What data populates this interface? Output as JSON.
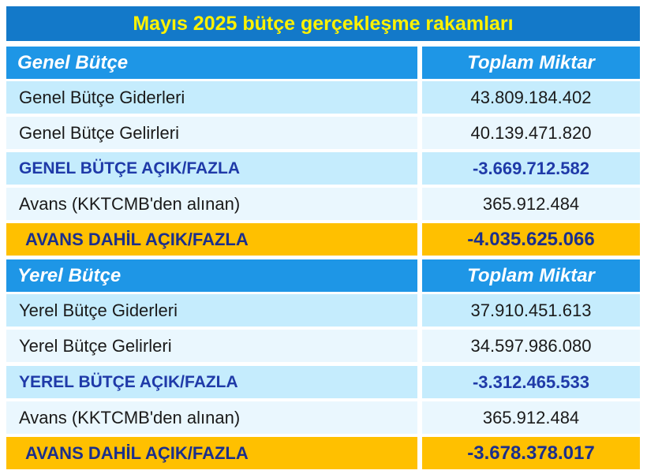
{
  "title": "Mayıs 2025 bütçe gerçekleşme rakamları",
  "general": {
    "header": {
      "label": "Genel Bütçe",
      "amount_label": "Toplam Miktar"
    },
    "rows": [
      {
        "label": "Genel Bütçe Giderleri",
        "value": "43.809.184.402"
      },
      {
        "label": "Genel Bütçe Gelirleri",
        "value": "40.139.471.820"
      },
      {
        "label": "GENEL BÜTÇE AÇIK/FAZLA",
        "value": "-3.669.712.582"
      },
      {
        "label": "Avans (KKTCMB'den alınan)",
        "value": "365.912.484"
      },
      {
        "label": "AVANS DAHİL AÇIK/FAZLA",
        "value": "-4.035.625.066"
      }
    ]
  },
  "local": {
    "header": {
      "label": "Yerel Bütçe",
      "amount_label": "Toplam Miktar"
    },
    "rows": [
      {
        "label": "Yerel Bütçe Giderleri",
        "value": "37.910.451.613"
      },
      {
        "label": "Yerel Bütçe Gelirleri",
        "value": "34.597.986.080"
      },
      {
        "label": "YEREL BÜTÇE AÇIK/FAZLA",
        "value": "-3.312.465.533"
      },
      {
        "label": "Avans  (KKTCMB'den alınan)",
        "value": "365.912.484"
      },
      {
        "label": "AVANS DAHİL AÇIK/FAZLA",
        "value": "-3.678.378.017"
      }
    ]
  }
}
